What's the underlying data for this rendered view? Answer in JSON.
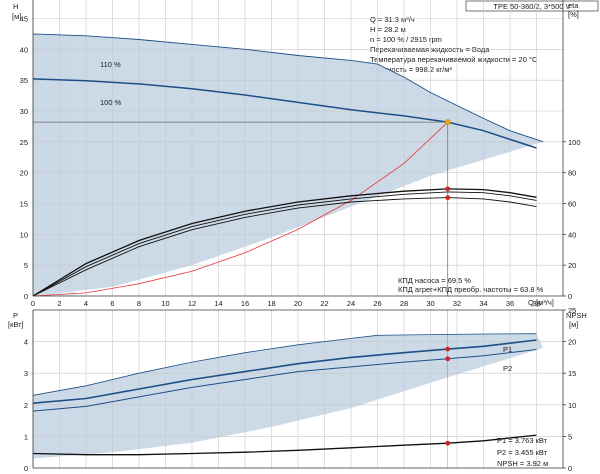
{
  "chart_data": {
    "type": "line",
    "title": "TPE 50-360/2, 3*500 V",
    "info_lines": [
      "Q = 31.3 м³/ч",
      "H = 28.2 м",
      "n = 100 % / 2915 rpm",
      "Перекачиваемая жидкость = Вода",
      "Температура перекачиваемой жидкости = 20 °C",
      "Плотность = 998.2 кг/м³"
    ],
    "top_panel": {
      "ylabel_left": "H",
      "yunit_left": "[м]",
      "ylabel_right": "eta",
      "yunit_right": "[%]",
      "xlabel": "Q",
      "xunit": "[м³/ч]",
      "x_ticks": [
        "0",
        "2",
        "4",
        "6",
        "8",
        "10",
        "12",
        "14",
        "16",
        "18",
        "20",
        "22",
        "24",
        "26",
        "28",
        "30",
        "32",
        "34",
        "36",
        "38"
      ],
      "y_ticks_left": [
        "0",
        "5",
        "10",
        "15",
        "20",
        "25",
        "30",
        "35",
        "40",
        "45"
      ],
      "y_ticks_right": [
        "0",
        "20",
        "40",
        "60",
        "80",
        "100"
      ],
      "xlim": [
        0,
        40
      ],
      "ylim_left": [
        0,
        48
      ],
      "ylim_right": [
        0,
        100
      ],
      "series": [
        {
          "name": "110 %",
          "x": [
            0,
            4,
            8,
            12,
            16,
            20,
            24,
            26,
            28,
            30,
            32,
            34,
            36,
            38.5
          ],
          "y": [
            42.5,
            42.2,
            41.6,
            40.8,
            40.0,
            39.0,
            38.2,
            37.6,
            35.5,
            33.0,
            30.9,
            28.8,
            26.8,
            25.0
          ]
        },
        {
          "name": "100 %",
          "x": [
            0,
            4,
            8,
            12,
            16,
            20,
            24,
            28,
            31.3,
            34,
            36,
            38
          ],
          "y": [
            35.2,
            34.9,
            34.4,
            33.6,
            32.6,
            31.4,
            30.2,
            29.2,
            28.2,
            26.8,
            25.4,
            24.0
          ]
        }
      ],
      "efficiency_curves": [
        {
          "x": [
            0,
            4,
            8,
            12,
            16,
            20,
            24,
            28,
            31.3,
            34,
            36,
            38
          ],
          "y": [
            0,
            21,
            36,
            47,
            55,
            61,
            65,
            68,
            69.5,
            69,
            67,
            64
          ]
        },
        {
          "x": [
            0,
            4,
            8,
            12,
            16,
            20,
            24,
            28,
            31.3,
            34,
            36,
            38
          ],
          "y": [
            0,
            19,
            34,
            45,
            53,
            59,
            63,
            66,
            67.5,
            67,
            65,
            62
          ]
        },
        {
          "x": [
            0,
            4,
            8,
            12,
            16,
            20,
            24,
            28,
            31.3,
            34,
            36,
            38
          ],
          "y": [
            0,
            17,
            32,
            43,
            51,
            57,
            61,
            63,
            63.8,
            63,
            61,
            58
          ]
        }
      ],
      "efficiency_labels": [
        "КПД насоса = 69.5 %",
        "КПД агрег+КПД преобр. частоты = 63.8 %"
      ],
      "system_curve": {
        "x": [
          0,
          4,
          8,
          12,
          16,
          20,
          24,
          28,
          31.3
        ],
        "y": [
          0,
          0.5,
          2.0,
          4.0,
          7.0,
          10.8,
          15.5,
          21.5,
          28.2
        ]
      },
      "duty_point": {
        "x": 31.3,
        "y": 28.2
      },
      "envelope_max": {
        "x": [
          0,
          4,
          8,
          12,
          16,
          20,
          24,
          26,
          28,
          30,
          32,
          34,
          36,
          38.5
        ],
        "y": [
          42.5,
          42.2,
          41.6,
          40.8,
          40.0,
          39.0,
          38.2,
          37.6,
          35.5,
          33.0,
          30.9,
          28.8,
          26.8,
          25.0
        ]
      },
      "envelope_min": {
        "x": [
          0,
          6,
          12,
          18,
          24,
          30,
          38.5
        ],
        "y": [
          0,
          1.5,
          5,
          9.5,
          14.5,
          19.5,
          25
        ]
      }
    },
    "bottom_panel": {
      "ylabel_left": "P",
      "yunit_left": "[кВт]",
      "ylabel_right": "NPSH",
      "yunit_right": "[м]",
      "x_ticks": [
        "0",
        "2",
        "4",
        "6",
        "8",
        "10",
        "12",
        "14",
        "16",
        "18",
        "20",
        "22",
        "24",
        "26",
        "28",
        "30",
        "32",
        "34",
        "36",
        "38"
      ],
      "y_ticks_left": [
        "0",
        "1",
        "2",
        "3",
        "4"
      ],
      "y_ticks_right": [
        "0",
        "5",
        "10",
        "15",
        "20",
        "25"
      ],
      "xlim": [
        0,
        40
      ],
      "ylim_left": [
        0,
        5
      ],
      "ylim_right": [
        0,
        25
      ],
      "series": [
        {
          "name": "P1",
          "x": [
            0,
            4,
            8,
            12,
            16,
            20,
            24,
            28,
            31.3,
            34,
            38
          ],
          "y": [
            2.05,
            2.2,
            2.5,
            2.8,
            3.05,
            3.3,
            3.5,
            3.65,
            3.763,
            3.85,
            4.05
          ]
        },
        {
          "name": "P2",
          "x": [
            0,
            4,
            8,
            12,
            16,
            20,
            24,
            28,
            31.3,
            34,
            38
          ],
          "y": [
            1.8,
            1.95,
            2.25,
            2.55,
            2.8,
            3.05,
            3.2,
            3.35,
            3.455,
            3.55,
            3.75
          ]
        },
        {
          "name": "NPSH",
          "x": [
            0,
            4,
            8,
            12,
            16,
            20,
            24,
            28,
            31.3,
            34,
            38
          ],
          "y": [
            2.3,
            2.1,
            2.1,
            2.3,
            2.5,
            2.8,
            3.2,
            3.6,
            3.92,
            4.3,
            5.2
          ]
        }
      ],
      "envelope_max": {
        "x": [
          0,
          4,
          8,
          12,
          16,
          20,
          24,
          26,
          30,
          34,
          38
        ],
        "y": [
          2.3,
          2.6,
          3.0,
          3.35,
          3.65,
          3.9,
          4.1,
          4.2,
          4.22,
          4.24,
          4.25
        ]
      },
      "envelope_min": {
        "x": [
          0,
          6,
          12,
          18,
          24,
          30,
          38.5
        ],
        "y": [
          0.3,
          0.5,
          0.8,
          1.3,
          1.9,
          2.7,
          3.8
        ]
      },
      "value_labels": [
        "P1 = 3.763 кВт",
        "P2 = 3.455 кВт",
        "NPSH = 3.92 м"
      ],
      "duty_x": 31.3
    },
    "colors": {
      "envelope": "#c9d7e6",
      "envelope_light": "#e4f0fa",
      "curve_blue": "#1d4f86",
      "curve_black": "#111111",
      "system_red": "#e83838",
      "duty_marker": "#f2a900",
      "point_red": "#d81e1e"
    }
  }
}
